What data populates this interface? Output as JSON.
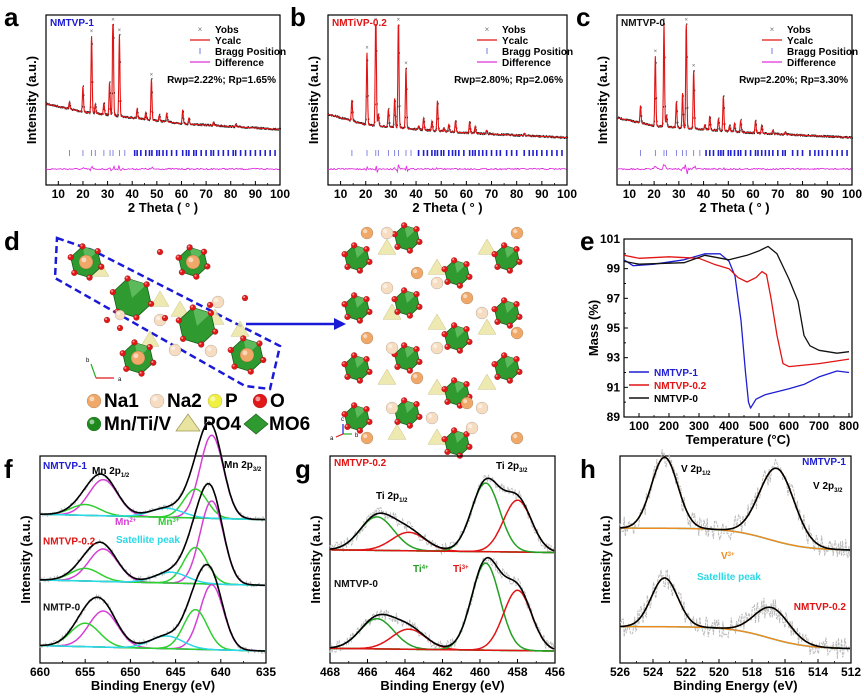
{
  "figure": {
    "panels": [
      "a",
      "b",
      "c",
      "d",
      "e",
      "f",
      "g",
      "h"
    ]
  },
  "chart_data": [
    {
      "panel": "a",
      "type": "line",
      "title": "NMTVP-1",
      "title_color": "#1a1ad6",
      "xlabel": "2 Theta ( ° )",
      "ylabel": "Intensity (a.u.)",
      "xlim": [
        5,
        100
      ],
      "xticks": [
        10,
        20,
        30,
        40,
        50,
        60,
        70,
        80,
        90,
        100
      ],
      "legend": [
        "Yobs",
        "Ycalc",
        "Bragg Position",
        "Difference"
      ],
      "legend_position": "top-right",
      "annotation": "Rwp=2.22%; Rp=1.65%",
      "baseline": [
        [
          5,
          0.34
        ],
        [
          20,
          0.27
        ],
        [
          40,
          0.22
        ],
        [
          60,
          0.17
        ],
        [
          100,
          0.12
        ]
      ],
      "peaks": [
        [
          14.5,
          0.06
        ],
        [
          20,
          0.22
        ],
        [
          23.5,
          0.66
        ],
        [
          25,
          0.08
        ],
        [
          28.5,
          0.1
        ],
        [
          30.8,
          0.28
        ],
        [
          32.2,
          1.0
        ],
        [
          34.8,
          0.7
        ],
        [
          42,
          0.08
        ],
        [
          45.5,
          0.06
        ],
        [
          47.8,
          0.35
        ],
        [
          51,
          0.05
        ],
        [
          54,
          0.07
        ],
        [
          60.5,
          0.12
        ],
        [
          63,
          0.05
        ],
        [
          73,
          0.03
        ],
        [
          82,
          0.02
        ]
      ],
      "bragg": [
        14.5,
        20,
        23.5,
        25,
        28.5,
        31,
        32.2,
        34.8,
        37,
        41,
        42,
        43.5,
        45.5,
        47,
        48,
        50,
        51,
        52.5,
        54,
        56,
        58,
        60.5,
        62,
        63,
        65,
        66,
        68,
        70,
        72,
        73,
        75,
        77,
        79,
        81,
        82,
        84,
        86,
        88,
        90,
        92,
        94,
        96,
        98
      ]
    },
    {
      "panel": "b",
      "type": "line",
      "title": "NMTiVP-0.2",
      "title_color": "#e01414",
      "xlabel": "2 Theta ( ° )",
      "ylabel": "Intensity (a.u.)",
      "xlim": [
        5,
        100
      ],
      "xticks": [
        10,
        20,
        30,
        40,
        50,
        60,
        70,
        80,
        90,
        100
      ],
      "legend": [
        "Yobs",
        "Ycalc",
        "Bragg Position",
        "Difference"
      ],
      "legend_position": "top-right",
      "annotation": "Rwp=2.80%; Rp=2.06%",
      "baseline": [
        [
          5,
          0.25
        ],
        [
          20,
          0.16
        ],
        [
          40,
          0.12
        ],
        [
          60,
          0.09
        ],
        [
          100,
          0.05
        ]
      ],
      "peaks": [
        [
          14.5,
          0.18
        ],
        [
          20.5,
          0.62
        ],
        [
          24,
          0.98
        ],
        [
          25,
          0.1
        ],
        [
          29,
          0.15
        ],
        [
          31.5,
          0.25
        ],
        [
          33,
          0.97
        ],
        [
          36,
          0.52
        ],
        [
          41,
          0.03
        ],
        [
          43,
          0.1
        ],
        [
          46.3,
          0.08
        ],
        [
          48.5,
          0.26
        ],
        [
          51,
          0.03
        ],
        [
          53,
          0.06
        ],
        [
          55.7,
          0.1
        ],
        [
          61.3,
          0.1
        ],
        [
          63.5,
          0.06
        ],
        [
          68,
          0.03
        ],
        [
          83,
          0.02
        ]
      ],
      "bragg": [
        14.5,
        20.5,
        24,
        25,
        29,
        31.5,
        33,
        36,
        38,
        41,
        43,
        44.5,
        46.3,
        47.5,
        48.5,
        50,
        51,
        53,
        54.5,
        55.7,
        57,
        59,
        61.3,
        62.5,
        63.5,
        65,
        66.5,
        68,
        70,
        72,
        73.5,
        76,
        78,
        80,
        83,
        85,
        86.5,
        88,
        90,
        92,
        94,
        96,
        98
      ]
    },
    {
      "panel": "c",
      "type": "line",
      "title": "NMTVP-0",
      "title_color": "#111111",
      "xlabel": "2 Theta ( ° )",
      "ylabel": "Intensity (a.u.)",
      "xlim": [
        5,
        100
      ],
      "xticks": [
        10,
        20,
        30,
        40,
        50,
        60,
        70,
        80,
        90,
        100
      ],
      "legend": [
        "Yobs",
        "Ycalc",
        "Bragg Position",
        "Difference"
      ],
      "legend_position": "top-right",
      "annotation": "Rwp=2.20%; Rp=3.30%",
      "baseline": [
        [
          5,
          0.22
        ],
        [
          20,
          0.15
        ],
        [
          40,
          0.12
        ],
        [
          60,
          0.09
        ],
        [
          100,
          0.05
        ]
      ],
      "peaks": [
        [
          14.5,
          0.15
        ],
        [
          20.5,
          0.6
        ],
        [
          24,
          0.9
        ],
        [
          25,
          0.1
        ],
        [
          29,
          0.22
        ],
        [
          31.5,
          0.3
        ],
        [
          33,
          0.92
        ],
        [
          36,
          0.5
        ],
        [
          40.5,
          0.04
        ],
        [
          42.5,
          0.12
        ],
        [
          46,
          0.1
        ],
        [
          48,
          0.3
        ],
        [
          50.5,
          0.05
        ],
        [
          52.5,
          0.07
        ],
        [
          55,
          0.1
        ],
        [
          61,
          0.11
        ],
        [
          63.5,
          0.07
        ],
        [
          68,
          0.03
        ],
        [
          73,
          0.02
        ]
      ],
      "bragg": [
        14.5,
        20.5,
        24,
        25,
        29,
        31.5,
        33,
        36,
        38.5,
        41,
        42.5,
        44,
        46,
        47,
        48,
        50,
        51,
        52.5,
        54,
        55,
        57,
        59,
        61,
        62,
        63.5,
        65,
        66.5,
        68,
        70,
        72,
        73,
        76,
        78,
        80,
        83,
        85,
        86.5,
        88,
        90,
        92,
        94,
        96,
        98
      ]
    },
    {
      "panel": "e",
      "type": "line",
      "xlabel": "Temperature (°C)",
      "ylabel": "Mass (%)",
      "xlim": [
        50,
        810
      ],
      "ylim": [
        89,
        101
      ],
      "xticks": [
        100,
        200,
        300,
        400,
        500,
        600,
        700,
        800
      ],
      "yticks": [
        89,
        91,
        93,
        95,
        97,
        99,
        101
      ],
      "legend_position": "bottom-left",
      "series": [
        {
          "name": "NMTVP-1",
          "color": "#1e1ed2",
          "points": [
            [
              50,
              99.6
            ],
            [
              80,
              99.2
            ],
            [
              150,
              99.3
            ],
            [
              250,
              99.6
            ],
            [
              320,
              100.0
            ],
            [
              370,
              100.0
            ],
            [
              400,
              99.5
            ],
            [
              420,
              98.5
            ],
            [
              440,
              95.5
            ],
            [
              455,
              92
            ],
            [
              465,
              90
            ],
            [
              472,
              89.6
            ],
            [
              490,
              90.2
            ],
            [
              520,
              90.5
            ],
            [
              600,
              90.9
            ],
            [
              650,
              91.2
            ],
            [
              700,
              91.7
            ],
            [
              760,
              92.1
            ],
            [
              800,
              92.0
            ]
          ]
        },
        {
          "name": "NMTVP-0.2",
          "color": "#e01414",
          "points": [
            [
              50,
              99.9
            ],
            [
              100,
              99.7
            ],
            [
              200,
              99.8
            ],
            [
              300,
              99.7
            ],
            [
              350,
              99.3
            ],
            [
              400,
              99.0
            ],
            [
              430,
              98.4
            ],
            [
              460,
              98.1
            ],
            [
              490,
              98.4
            ],
            [
              510,
              98.8
            ],
            [
              525,
              98.6
            ],
            [
              540,
              97.0
            ],
            [
              560,
              94.5
            ],
            [
              580,
              92.6
            ],
            [
              600,
              92.4
            ],
            [
              700,
              92.6
            ],
            [
              800,
              92.9
            ]
          ]
        },
        {
          "name": "NMTVP-0",
          "color": "#111111",
          "points": [
            [
              50,
              99.5
            ],
            [
              100,
              99.3
            ],
            [
              250,
              99.4
            ],
            [
              320,
              99.9
            ],
            [
              400,
              99.6
            ],
            [
              460,
              99.9
            ],
            [
              500,
              100.2
            ],
            [
              530,
              100.5
            ],
            [
              560,
              100.0
            ],
            [
              600,
              98.3
            ],
            [
              630,
              96.8
            ],
            [
              650,
              94.5
            ],
            [
              670,
              93.8
            ],
            [
              700,
              93.5
            ],
            [
              760,
              93.3
            ],
            [
              800,
              93.4
            ]
          ]
        }
      ]
    },
    {
      "panel": "f",
      "type": "line",
      "xlabel": "Binding Energy (eV)",
      "ylabel": "Intensity (a.u.)",
      "xlim": [
        660,
        635
      ],
      "xticks": [
        660,
        655,
        650,
        645,
        640,
        635
      ],
      "annotations": {
        "peak_left": "Mn 2p1/2",
        "peak_right": "Mn 2p3/2",
        "mn2": "Mn2+",
        "mn3": "Mn3+",
        "satellite": "Satellite peak"
      },
      "colors": {
        "mn2": "#d63fd6",
        "mn3": "#2fcf2f",
        "satellite": "#2bd8e6",
        "envelope": "#000000",
        "raw": "#b8b8b8"
      },
      "series": [
        {
          "name": "NMTVP-1",
          "color": "#1e1ed2",
          "components": [
            [
              653,
              1.0,
              "mn2"
            ],
            [
              641,
              2.3,
              "mn2"
            ],
            [
              642.8,
              0.8,
              "mn3"
            ],
            [
              655,
              0.3,
              "mn3"
            ],
            [
              646,
              0.25,
              "sat"
            ]
          ]
        },
        {
          "name": "NMTVP-0.2",
          "color": "#e01414",
          "components": [
            [
              653,
              0.9,
              "mn2"
            ],
            [
              641,
              2.3,
              "mn2"
            ],
            [
              642.8,
              1.0,
              "mn3"
            ],
            [
              655,
              0.35,
              "mn3"
            ],
            [
              645.5,
              0.3,
              "sat"
            ]
          ]
        },
        {
          "name": "NMTP-0",
          "color": "#111111",
          "components": [
            [
              653,
              1.0,
              "mn2"
            ],
            [
              641,
              1.8,
              "mn2"
            ],
            [
              642.8,
              1.1,
              "mn3"
            ],
            [
              655,
              0.65,
              "mn3"
            ],
            [
              646,
              0.35,
              "sat"
            ]
          ]
        }
      ]
    },
    {
      "panel": "g",
      "type": "line",
      "xlabel": "Binding Energy (eV)",
      "ylabel": "Intensity (a.u.)",
      "xlim": [
        468,
        456
      ],
      "xticks": [
        468,
        466,
        464,
        462,
        460,
        458,
        456
      ],
      "annotations": {
        "peak_left": "Ti 2p1/2",
        "peak_right": "Ti 2p3/2",
        "ti4": "Ti4+",
        "ti3": "Ti3+"
      },
      "colors": {
        "ti4": "#23a023",
        "ti3": "#e01414",
        "envelope": "#000000",
        "raw": "#b8b8b8"
      },
      "series": [
        {
          "name": "NMTVP-0.2",
          "color": "#e01414",
          "components": [
            [
              465.5,
              1.0,
              "ti4"
            ],
            [
              463.8,
              0.55,
              "ti3"
            ],
            [
              459.7,
              2.05,
              "ti4"
            ],
            [
              458,
              1.55,
              "ti3"
            ]
          ]
        },
        {
          "name": "NMTVP-0",
          "color": "#111111",
          "components": [
            [
              465.5,
              0.9,
              "ti4"
            ],
            [
              463.8,
              0.6,
              "ti3"
            ],
            [
              459.7,
              2.6,
              "ti4"
            ],
            [
              458,
              1.8,
              "ti3"
            ]
          ]
        }
      ]
    },
    {
      "panel": "h",
      "type": "line",
      "xlabel": "Binding Energy (eV)",
      "ylabel": "Intensity (a.u.)",
      "xlim": [
        526,
        512
      ],
      "xticks": [
        526,
        524,
        522,
        520,
        518,
        516,
        514,
        512
      ],
      "annotations": {
        "peak_left": "V 2p1/2",
        "peak_right": "V 2p3/2",
        "v3": "V3+",
        "satellite": "Satellite peak"
      },
      "colors": {
        "v3": "#ee8a1e",
        "satellite": "#2bd8e6",
        "envelope": "#000000",
        "raw": "#b8b8b8"
      },
      "series": [
        {
          "name": "NMTVP-1",
          "color": "#1e1ed2",
          "components": [
            [
              523.3,
              1.6,
              "v3"
            ],
            [
              516.5,
              1.65,
              "v3"
            ]
          ]
        },
        {
          "name": "NMTVP-0.2",
          "color": "#e01414",
          "components": [
            [
              523.3,
              1.1,
              "v3"
            ],
            [
              516.8,
              0.7,
              "v3"
            ]
          ]
        }
      ]
    }
  ],
  "structure": {
    "panel": "d",
    "legend": [
      {
        "label": "Na1",
        "icon": "na1-sphere-icon",
        "color": "#f0a868"
      },
      {
        "label": "Na2",
        "icon": "na2-sphere-icon",
        "color": "#f6dcc0"
      },
      {
        "label": "P",
        "icon": "p-sphere-icon",
        "color": "#f0f040"
      },
      {
        "label": "O",
        "icon": "o-sphere-icon",
        "color": "#e01818"
      },
      {
        "label": "Mn/Ti/V",
        "icon": "mn-ti-v-sphere-icon",
        "color": "#1e8a1e"
      },
      {
        "label": "PO4",
        "icon": "po4-tetrahedron-icon",
        "color": "#e8e4a0"
      },
      {
        "label": "MO6",
        "icon": "mo6-octahedron-icon",
        "color": "#2f9a2f"
      }
    ],
    "axes_left": {
      "x": "a",
      "y": "b"
    },
    "axes_right": {
      "x": "b",
      "y": "c",
      "z": "a"
    }
  }
}
